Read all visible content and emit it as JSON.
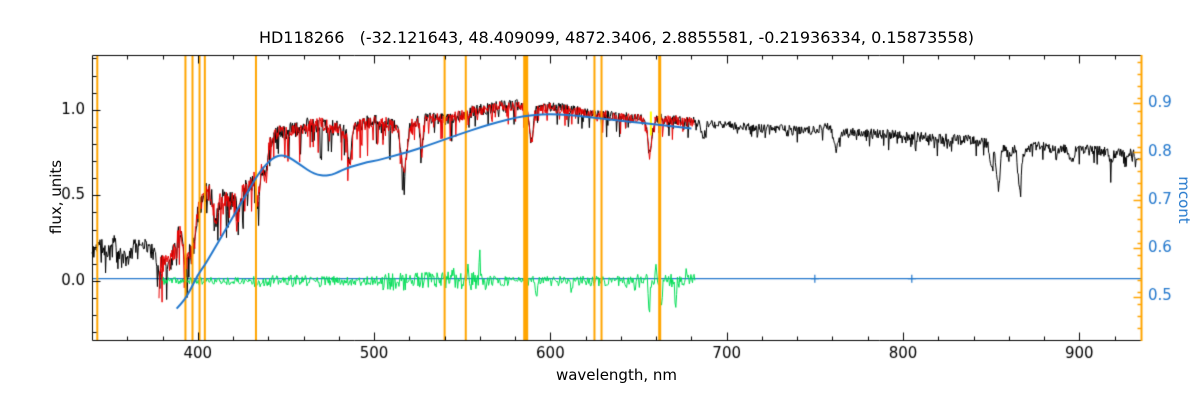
{
  "chart_data": {
    "type": "line",
    "title": "HD118266   (-32.121643, 48.409099, 4872.3406, 2.8855581, -0.21936334, 0.15873558)",
    "xlabel": "wavelength, nm",
    "ylabel_left": "flux, units",
    "ylabel_right": "mcont",
    "xlim": [
      340,
      935
    ],
    "ylim_left": [
      -0.345,
      1.32
    ],
    "ylim_right": [
      0.41,
      1.0
    ],
    "grid": false,
    "legend": null,
    "x_ticks": {
      "values": [
        400,
        500,
        600,
        700,
        800,
        900
      ],
      "labels": [
        "400",
        "500",
        "600",
        "700",
        "800",
        "900"
      ],
      "minor_step": 20
    },
    "y_left_ticks": {
      "values": [
        0.0,
        0.5,
        1.0
      ],
      "labels": [
        "0.0",
        "0.5",
        "1.0"
      ],
      "minor_step": 0.1
    },
    "y_right_ticks": {
      "values": [
        0.5,
        0.6,
        0.7,
        0.8,
        0.9
      ],
      "labels": [
        "0.5",
        "0.6",
        "0.7",
        "0.8",
        "0.9"
      ],
      "minor_step": 0.025
    },
    "colors": {
      "black": "#000000",
      "red": "#e80000",
      "green": "#00dd55",
      "blue": "#2277cc",
      "orange": "#ffa500",
      "yellow": "#ffff00",
      "axis": "#000000"
    },
    "spike_probability": 0.12,
    "vlines": [
      [
        343,
        2
      ],
      [
        393,
        2
      ],
      [
        397,
        2
      ],
      [
        401,
        2
      ],
      [
        404,
        2
      ],
      [
        433,
        2
      ],
      [
        540,
        2
      ],
      [
        552,
        2
      ],
      [
        586,
        5
      ],
      [
        625,
        2
      ],
      [
        629,
        2
      ],
      [
        662,
        3
      ]
    ],
    "yellow_mark": {
      "x": 657,
      "y0": 0.85,
      "y1": 0.99
    },
    "series": {
      "black_spectrum": {
        "axis": "left",
        "seed": 11,
        "step": 0.35,
        "range": [
          340,
          935
        ],
        "noise": [
          [
            340,
            378,
            0.045,
            0.1
          ],
          [
            378,
            442,
            0.06,
            0.22
          ],
          [
            442,
            520,
            0.045,
            0.18
          ],
          [
            520,
            586,
            0.035,
            0.13
          ],
          [
            586,
            682,
            0.03,
            0.11
          ],
          [
            682,
            782,
            0.025,
            0.07
          ],
          [
            782,
            935,
            0.03,
            0.1
          ]
        ],
        "lines": [
          [
            393.4,
            0.45,
            1.2
          ],
          [
            396.8,
            0.4,
            1.2
          ],
          [
            410.2,
            0.25,
            1.0
          ],
          [
            422.7,
            0.3,
            0.9
          ],
          [
            434,
            0.25,
            1.0
          ],
          [
            438.4,
            0.2,
            0.8
          ],
          [
            486.1,
            0.22,
            0.9
          ],
          [
            517,
            0.28,
            1.5
          ],
          [
            527,
            0.18,
            0.8
          ],
          [
            589.2,
            0.2,
            1.0
          ],
          [
            656.3,
            0.2,
            1.0
          ],
          [
            686.7,
            0.1,
            1.0
          ],
          [
            762,
            0.12,
            1.2
          ],
          [
            850,
            0.15,
            0.8
          ],
          [
            854.2,
            0.3,
            1.0
          ],
          [
            866.2,
            0.28,
            1.0
          ],
          [
            896,
            0.1,
            1.0
          ],
          [
            918,
            0.08,
            1.0
          ]
        ],
        "envelope": [
          [
            340,
            0.16
          ],
          [
            344,
            0.22
          ],
          [
            348,
            0.17
          ],
          [
            352,
            0.24
          ],
          [
            356,
            0.15
          ],
          [
            360,
            0.12
          ],
          [
            364,
            0.2
          ],
          [
            368,
            0.23
          ],
          [
            372,
            0.2
          ],
          [
            375,
            0.16
          ],
          [
            378,
            0.07
          ],
          [
            381,
            0.13
          ],
          [
            384,
            0.09
          ],
          [
            387,
            0.19
          ],
          [
            390,
            0.3
          ],
          [
            393,
            0.2
          ],
          [
            396,
            0.24
          ],
          [
            399,
            0.38
          ],
          [
            402,
            0.46
          ],
          [
            405,
            0.52
          ],
          [
            408,
            0.5
          ],
          [
            411,
            0.45
          ],
          [
            414,
            0.48
          ],
          [
            418,
            0.46
          ],
          [
            422,
            0.52
          ],
          [
            426,
            0.52
          ],
          [
            430,
            0.58
          ],
          [
            434,
            0.62
          ],
          [
            438,
            0.72
          ],
          [
            442,
            0.83
          ],
          [
            446,
            0.87
          ],
          [
            450,
            0.86
          ],
          [
            454,
            0.89
          ],
          [
            458,
            0.88
          ],
          [
            462,
            0.91
          ],
          [
            466,
            0.91
          ],
          [
            470,
            0.92
          ],
          [
            475,
            0.9
          ],
          [
            480,
            0.89
          ],
          [
            486,
            0.85
          ],
          [
            491,
            0.91
          ],
          [
            496,
            0.92
          ],
          [
            501,
            0.93
          ],
          [
            506,
            0.92
          ],
          [
            511,
            0.9
          ],
          [
            516,
            0.87
          ],
          [
            521,
            0.92
          ],
          [
            526,
            0.94
          ],
          [
            531,
            0.95
          ],
          [
            536,
            0.95
          ],
          [
            541,
            0.94
          ],
          [
            546,
            0.96
          ],
          [
            551,
            0.97
          ],
          [
            556,
            0.99
          ],
          [
            561,
            1.0
          ],
          [
            566,
            1.01
          ],
          [
            571,
            1.02
          ],
          [
            576,
            1.02
          ],
          [
            581,
            1.03
          ],
          [
            586,
            1.02
          ],
          [
            591,
            1.0
          ],
          [
            596,
            1.02
          ],
          [
            601,
            1.02
          ],
          [
            606,
            1.01
          ],
          [
            611,
            1.0
          ],
          [
            616,
            0.99
          ],
          [
            621,
            0.98
          ],
          [
            626,
            0.97
          ],
          [
            631,
            0.97
          ],
          [
            636,
            0.96
          ],
          [
            641,
            0.96
          ],
          [
            646,
            0.95
          ],
          [
            651,
            0.95
          ],
          [
            656,
            0.92
          ],
          [
            661,
            0.95
          ],
          [
            666,
            0.94
          ],
          [
            671,
            0.94
          ],
          [
            676,
            0.93
          ],
          [
            681,
            0.93
          ],
          [
            691,
            0.92
          ],
          [
            701,
            0.91
          ],
          [
            711,
            0.9
          ],
          [
            721,
            0.89
          ],
          [
            731,
            0.89
          ],
          [
            741,
            0.88
          ],
          [
            751,
            0.88
          ],
          [
            757,
            0.91
          ],
          [
            761,
            0.87
          ],
          [
            771,
            0.87
          ],
          [
            781,
            0.86
          ],
          [
            791,
            0.86
          ],
          [
            801,
            0.85
          ],
          [
            811,
            0.84
          ],
          [
            821,
            0.83
          ],
          [
            831,
            0.83
          ],
          [
            841,
            0.82
          ],
          [
            848,
            0.8
          ],
          [
            852,
            0.75
          ],
          [
            856,
            0.8
          ],
          [
            860,
            0.73
          ],
          [
            864,
            0.78
          ],
          [
            868,
            0.76
          ],
          [
            875,
            0.79
          ],
          [
            881,
            0.78
          ],
          [
            891,
            0.77
          ],
          [
            901,
            0.77
          ],
          [
            911,
            0.76
          ],
          [
            921,
            0.75
          ],
          [
            931,
            0.74
          ],
          [
            935,
            0.72
          ]
        ]
      },
      "red_spectrum": {
        "axis": "left",
        "seed": 23,
        "step": 0.35,
        "range": [
          378,
          682
        ],
        "envelope_from": "black_spectrum",
        "noise": [
          [
            378,
            442,
            0.055,
            0.2
          ],
          [
            442,
            520,
            0.04,
            0.16
          ],
          [
            520,
            586,
            0.03,
            0.11
          ],
          [
            586,
            682,
            0.028,
            0.09
          ]
        ],
        "lines": [
          [
            393.4,
            0.45,
            1.2
          ],
          [
            396.8,
            0.4,
            1.2
          ],
          [
            410.2,
            0.25,
            1.0
          ],
          [
            422.7,
            0.3,
            0.9
          ],
          [
            434,
            0.25,
            1.0
          ],
          [
            438.4,
            0.2,
            0.8
          ],
          [
            486.1,
            0.22,
            0.9
          ],
          [
            517,
            0.28,
            1.5
          ],
          [
            527,
            0.18,
            0.8
          ],
          [
            589.2,
            0.2,
            1.0
          ],
          [
            656.3,
            0.2,
            1.0
          ]
        ]
      },
      "green_residual": {
        "axis": "left",
        "seed": 37,
        "step": 0.45,
        "range": [
          380,
          682
        ],
        "amp_regions": [
          [
            380,
            430,
            0.022
          ],
          [
            430,
            470,
            0.035
          ],
          [
            470,
            505,
            0.028
          ],
          [
            505,
            565,
            0.055
          ],
          [
            565,
            640,
            0.03
          ],
          [
            640,
            682,
            0.04
          ]
        ],
        "spikes": [
          [
            545,
            0.1
          ],
          [
            553,
            0.09
          ],
          [
            560,
            0.13
          ],
          [
            592,
            -0.12
          ],
          [
            612,
            -0.09
          ],
          [
            648,
            -0.11
          ],
          [
            656,
            -0.22
          ],
          [
            660,
            0.12
          ],
          [
            663,
            -0.18
          ],
          [
            671,
            -0.14
          ],
          [
            677,
            0.08
          ]
        ]
      },
      "mcont_curve": {
        "axis": "right",
        "points": [
          [
            388,
            0.475
          ],
          [
            392,
            0.49
          ],
          [
            396,
            0.515
          ],
          [
            400,
            0.545
          ],
          [
            404,
            0.565
          ],
          [
            408,
            0.59
          ],
          [
            412,
            0.615
          ],
          [
            416,
            0.64
          ],
          [
            420,
            0.665
          ],
          [
            424,
            0.69
          ],
          [
            428,
            0.715
          ],
          [
            432,
            0.74
          ],
          [
            436,
            0.762
          ],
          [
            440,
            0.778
          ],
          [
            444,
            0.79
          ],
          [
            448,
            0.793
          ],
          [
            452,
            0.788
          ],
          [
            456,
            0.778
          ],
          [
            460,
            0.768
          ],
          [
            464,
            0.758
          ],
          [
            468,
            0.752
          ],
          [
            472,
            0.75
          ],
          [
            476,
            0.752
          ],
          [
            480,
            0.758
          ],
          [
            484,
            0.765
          ],
          [
            490,
            0.772
          ],
          [
            496,
            0.778
          ],
          [
            502,
            0.782
          ],
          [
            510,
            0.79
          ],
          [
            520,
            0.8
          ],
          [
            530,
            0.812
          ],
          [
            540,
            0.825
          ],
          [
            550,
            0.838
          ],
          [
            560,
            0.85
          ],
          [
            570,
            0.861
          ],
          [
            580,
            0.87
          ],
          [
            590,
            0.876
          ],
          [
            600,
            0.878
          ],
          [
            610,
            0.876
          ],
          [
            620,
            0.872
          ],
          [
            630,
            0.868
          ],
          [
            640,
            0.864
          ],
          [
            650,
            0.86
          ],
          [
            660,
            0.856
          ],
          [
            670,
            0.852
          ],
          [
            680,
            0.848
          ]
        ]
      },
      "baseline": {
        "axis": "right",
        "value": 0.537,
        "range": [
          340,
          935
        ],
        "markers": [
          750,
          805
        ]
      }
    }
  }
}
